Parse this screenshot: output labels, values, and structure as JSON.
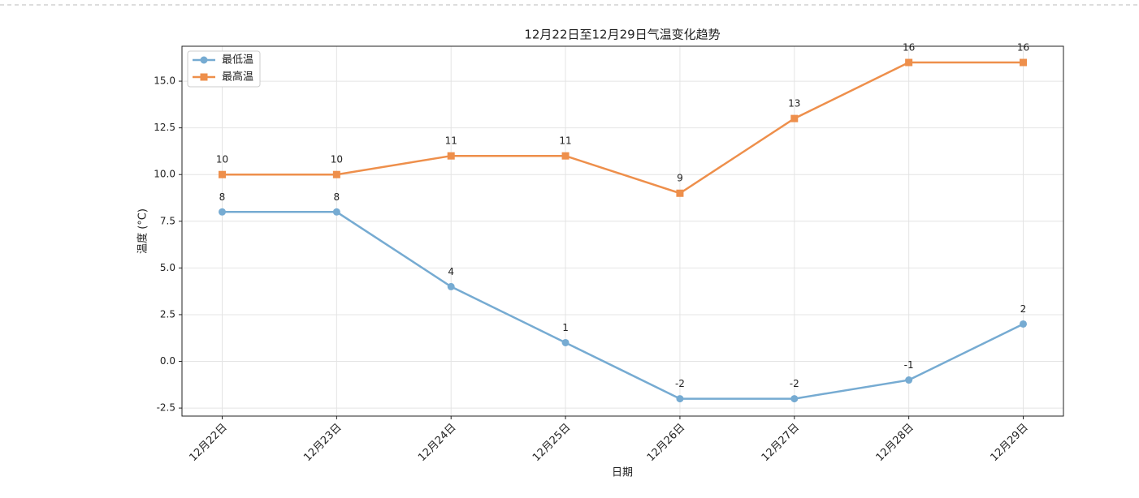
{
  "chart_data": {
    "type": "line",
    "title": "12月22日至12月29日气温变化趋势",
    "x_label": "日期",
    "y_label": "温度 (°C)",
    "categories": [
      "12月22日",
      "12月23日",
      "12月24日",
      "12月25日",
      "12月26日",
      "12月27日",
      "12月28日",
      "12月29日"
    ],
    "series": [
      {
        "name": "最低温",
        "color": "#76abd2",
        "marker": "circle",
        "values": [
          8,
          8,
          4,
          1,
          -2,
          -2,
          -1,
          2
        ]
      },
      {
        "name": "最高温",
        "color": "#ee8f4b",
        "marker": "square",
        "values": [
          10,
          10,
          11,
          11,
          9,
          13,
          16,
          16
        ]
      }
    ],
    "ylim": [
      -2.93,
      16.87
    ],
    "yticks": [
      -2.5,
      {
        "value": 0,
        "label": "0.0"
      },
      2.5,
      {
        "value": 5,
        "label": "5.0"
      },
      7.5,
      {
        "value": 10,
        "label": "10.0"
      },
      12.5,
      {
        "value": 15,
        "label": "15.0"
      }
    ],
    "grid": true,
    "legend": "upper left"
  }
}
